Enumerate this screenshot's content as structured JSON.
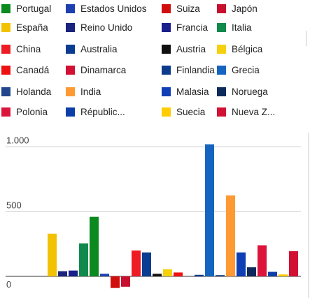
{
  "legend": {
    "items": [
      {
        "label": "Portugal",
        "color": "#0b8a1f"
      },
      {
        "label": "Estados Unidos",
        "color": "#1d3fb0"
      },
      {
        "label": "Suiza",
        "color": "#d10e0e"
      },
      {
        "label": "Japón",
        "color": "#c8102e"
      },
      {
        "label": "España",
        "color": "#f2c200"
      },
      {
        "label": "Reino Unido",
        "color": "#1a237e"
      },
      {
        "label": "Francia",
        "color": "#1a1f8c"
      },
      {
        "label": "Italia",
        "color": "#0f8a4c"
      },
      {
        "label": "China",
        "color": "#ee1c25"
      },
      {
        "label": "Australia",
        "color": "#0a3d91"
      },
      {
        "label": "Austria",
        "color": "#111111"
      },
      {
        "label": "Bélgica",
        "color": "#f5d10c"
      },
      {
        "label": "Canadá",
        "color": "#ee1111"
      },
      {
        "label": "Dinamarca",
        "color": "#d21034"
      },
      {
        "label": "Finlandia",
        "color": "#0d3b8c"
      },
      {
        "label": "Grecia",
        "color": "#1565c0"
      },
      {
        "label": "Holanda",
        "color": "#21468b"
      },
      {
        "label": "India",
        "color": "#ff9933"
      },
      {
        "label": "Malasia",
        "color": "#0f3fb5"
      },
      {
        "label": "Noruega",
        "color": "#0d2a5c"
      },
      {
        "label": "Polonia",
        "color": "#dc143c"
      },
      {
        "label": "Républic...",
        "color": "#0b3ea8"
      },
      {
        "label": "Suecia",
        "color": "#fecc00"
      },
      {
        "label": "Nueva Z...",
        "color": "#d21034"
      }
    ]
  },
  "chart_data": {
    "type": "bar",
    "title": "",
    "xlabel": "",
    "ylabel": "",
    "ylim": [
      -50,
      1080
    ],
    "yticks": [
      {
        "value": 0,
        "label": "0"
      },
      {
        "value": 500,
        "label": "500"
      },
      {
        "value": 1000,
        "label": "1.000"
      }
    ],
    "grid": true,
    "legend_position": "top",
    "series": [
      {
        "name": "Portugal",
        "values": [
          0
        ]
      },
      {
        "name": "Estados Unidos",
        "values": [
          0
        ]
      },
      {
        "name": "Suiza",
        "values": [
          0
        ]
      },
      {
        "name": "Japón",
        "values": [
          0
        ]
      },
      {
        "name": "España",
        "values": [
          330
        ]
      },
      {
        "name": "Reino Unido",
        "values": [
          40
        ]
      },
      {
        "name": "Francia",
        "values": [
          45
        ]
      },
      {
        "name": "Italia",
        "values": [
          255
        ]
      },
      {
        "name": "Portugal",
        "values": [
          460
        ]
      },
      {
        "name": "Estados Unidos",
        "values": [
          20
        ]
      },
      {
        "name": "Suiza",
        "values": [
          -90
        ]
      },
      {
        "name": "Japón",
        "values": [
          -80
        ]
      },
      {
        "name": "China",
        "values": [
          200
        ]
      },
      {
        "name": "Australia",
        "values": [
          185
        ]
      },
      {
        "name": "Austria",
        "values": [
          20
        ]
      },
      {
        "name": "Bélgica",
        "values": [
          55
        ]
      },
      {
        "name": "Canadá",
        "values": [
          30
        ]
      },
      {
        "name": "Dinamarca",
        "values": [
          0
        ]
      },
      {
        "name": "Finlandia",
        "values": [
          12
        ]
      },
      {
        "name": "Grecia",
        "values": [
          1020
        ]
      },
      {
        "name": "Holanda",
        "values": [
          10
        ]
      },
      {
        "name": "India",
        "values": [
          625
        ]
      },
      {
        "name": "Malasia",
        "values": [
          185
        ]
      },
      {
        "name": "Noruega",
        "values": [
          70
        ]
      },
      {
        "name": "Polonia",
        "values": [
          240
        ]
      },
      {
        "name": "Républic...",
        "values": [
          35
        ]
      },
      {
        "name": "Suecia",
        "values": [
          15
        ]
      },
      {
        "name": "Nueva Z...",
        "values": [
          195
        ]
      }
    ]
  }
}
